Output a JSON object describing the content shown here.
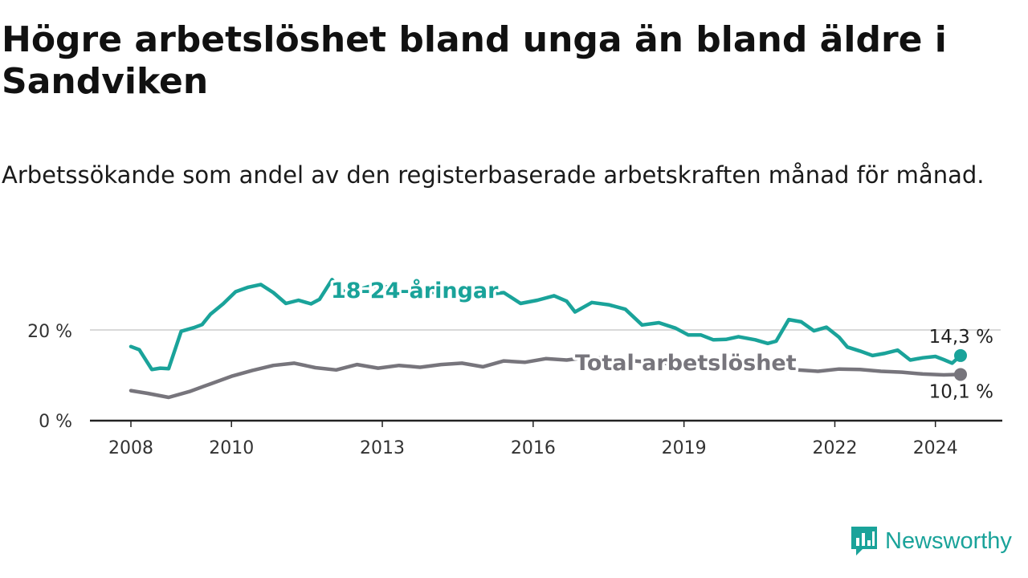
{
  "title": "Högre arbetslöshet bland unga än bland äldre i Sandviken",
  "subtitle": "Arbetssökande som andel av den registerbaserade arbetskraften månad för månad.",
  "brand": "Newsworthy",
  "colors": {
    "youth": "#1aa39a",
    "total": "#77757c",
    "axis": "#222222",
    "grid": "#d9d9d9",
    "brand": "#1aa39a"
  },
  "chart_data": {
    "type": "line",
    "title": "Högre arbetslöshet bland unga än bland äldre i Sandviken",
    "subtitle": "Arbetssökande som andel av den registerbaserade arbetskraften månad för månad.",
    "xlabel": "",
    "ylabel": "",
    "x_range": [
      "2008-01",
      "2024-07"
    ],
    "x_ticks": [
      "2008",
      "2010",
      "2013",
      "2016",
      "2019",
      "2022",
      "2024"
    ],
    "y_ticks": [
      0,
      20
    ],
    "y_tick_labels": [
      "0 %",
      "20 %"
    ],
    "ylim": [
      0,
      32
    ],
    "grid": "horizontal at 20",
    "legend": "inline labels",
    "series": [
      {
        "name": "18-24-åringar",
        "color": "#1aa39a",
        "end_label": "14,3 %",
        "points": [
          [
            "2008-01",
            16.3
          ],
          [
            "2008-03",
            15.6
          ],
          [
            "2008-06",
            11.2
          ],
          [
            "2008-08",
            11.5
          ],
          [
            "2008-10",
            11.4
          ],
          [
            "2009-01",
            19.7
          ],
          [
            "2009-04",
            20.5
          ],
          [
            "2009-06",
            21.2
          ],
          [
            "2009-08",
            23.5
          ],
          [
            "2009-11",
            25.8
          ],
          [
            "2010-02",
            28.5
          ],
          [
            "2010-05",
            29.5
          ],
          [
            "2010-08",
            30.1
          ],
          [
            "2010-11",
            28.3
          ],
          [
            "2011-02",
            25.9
          ],
          [
            "2011-05",
            26.6
          ],
          [
            "2011-08",
            25.8
          ],
          [
            "2011-10",
            26.8
          ],
          [
            "2012-01",
            31.2
          ],
          [
            "2012-04",
            28.4
          ],
          [
            "2012-07",
            28.9
          ],
          [
            "2012-10",
            29.7
          ],
          [
            "2013-02",
            29.6
          ],
          [
            "2013-06",
            28.5
          ],
          [
            "2013-10",
            28.3
          ],
          [
            "2014-03",
            28.4
          ],
          [
            "2014-08",
            28.6
          ],
          [
            "2015-01",
            27.8
          ],
          [
            "2015-06",
            28.3
          ],
          [
            "2015-10",
            25.9
          ],
          [
            "2016-02",
            26.6
          ],
          [
            "2016-06",
            27.6
          ],
          [
            "2016-09",
            26.4
          ],
          [
            "2016-11",
            24.0
          ],
          [
            "2017-03",
            26.1
          ],
          [
            "2017-07",
            25.6
          ],
          [
            "2017-11",
            24.6
          ],
          [
            "2018-03",
            21.1
          ],
          [
            "2018-07",
            21.6
          ],
          [
            "2018-11",
            20.4
          ],
          [
            "2019-02",
            18.9
          ],
          [
            "2019-05",
            18.9
          ],
          [
            "2019-08",
            17.8
          ],
          [
            "2019-11",
            17.9
          ],
          [
            "2020-02",
            18.5
          ],
          [
            "2020-06",
            17.8
          ],
          [
            "2020-09",
            17.0
          ],
          [
            "2020-11",
            17.5
          ],
          [
            "2021-02",
            22.3
          ],
          [
            "2021-05",
            21.8
          ],
          [
            "2021-08",
            19.8
          ],
          [
            "2021-11",
            20.6
          ],
          [
            "2022-02",
            18.4
          ],
          [
            "2022-04",
            16.2
          ],
          [
            "2022-07",
            15.3
          ],
          [
            "2022-10",
            14.3
          ],
          [
            "2023-01",
            14.8
          ],
          [
            "2023-04",
            15.5
          ],
          [
            "2023-07",
            13.3
          ],
          [
            "2023-10",
            13.8
          ],
          [
            "2024-01",
            14.1
          ],
          [
            "2024-03",
            13.4
          ],
          [
            "2024-05",
            12.6
          ],
          [
            "2024-07",
            14.3
          ]
        ]
      },
      {
        "name": "Total arbetslöshet",
        "color": "#77757c",
        "end_label": "10,1 %",
        "points": [
          [
            "2008-01",
            6.5
          ],
          [
            "2008-05",
            5.9
          ],
          [
            "2008-10",
            5.0
          ],
          [
            "2009-03",
            6.3
          ],
          [
            "2009-08",
            8.0
          ],
          [
            "2010-01",
            9.7
          ],
          [
            "2010-06",
            11.0
          ],
          [
            "2010-11",
            12.1
          ],
          [
            "2011-04",
            12.6
          ],
          [
            "2011-09",
            11.6
          ],
          [
            "2012-02",
            11.1
          ],
          [
            "2012-07",
            12.3
          ],
          [
            "2012-12",
            11.5
          ],
          [
            "2013-05",
            12.1
          ],
          [
            "2013-10",
            11.7
          ],
          [
            "2014-03",
            12.3
          ],
          [
            "2014-08",
            12.6
          ],
          [
            "2015-01",
            11.8
          ],
          [
            "2015-06",
            13.1
          ],
          [
            "2015-11",
            12.8
          ],
          [
            "2016-04",
            13.6
          ],
          [
            "2016-09",
            13.3
          ],
          [
            "2017-02",
            13.9
          ],
          [
            "2017-07",
            13.6
          ],
          [
            "2017-12",
            13.2
          ],
          [
            "2018-05",
            12.8
          ],
          [
            "2018-10",
            12.5
          ],
          [
            "2019-03",
            12.0
          ],
          [
            "2019-08",
            11.5
          ],
          [
            "2020-01",
            11.6
          ],
          [
            "2020-06",
            11.8
          ],
          [
            "2020-11",
            11.4
          ],
          [
            "2021-04",
            11.1
          ],
          [
            "2021-09",
            10.8
          ],
          [
            "2022-02",
            11.3
          ],
          [
            "2022-07",
            11.2
          ],
          [
            "2022-12",
            10.8
          ],
          [
            "2023-05",
            10.6
          ],
          [
            "2023-10",
            10.2
          ],
          [
            "2024-03",
            10.0
          ],
          [
            "2024-07",
            10.1
          ]
        ]
      }
    ]
  }
}
